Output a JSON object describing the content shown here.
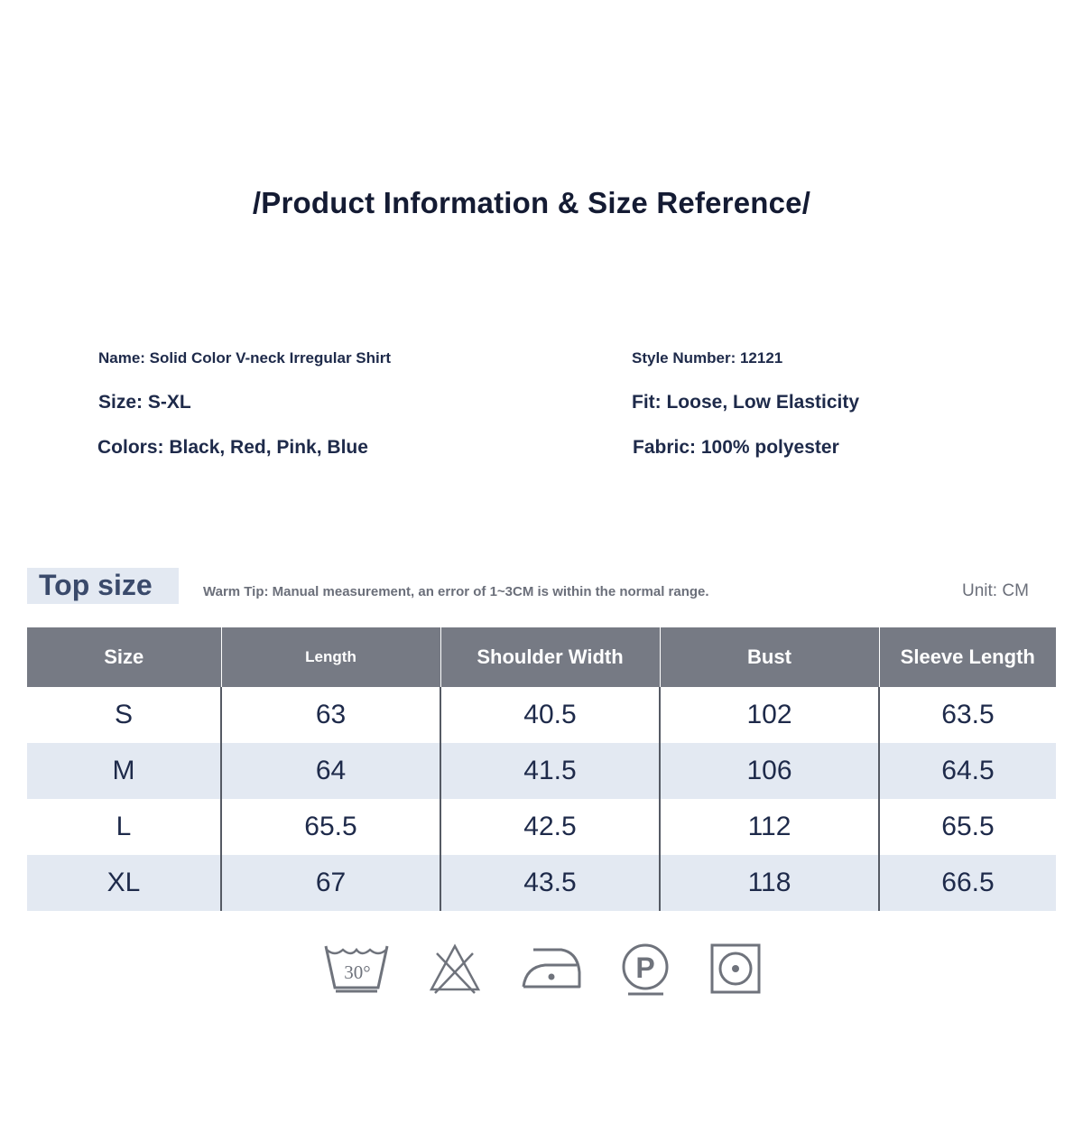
{
  "title": "/Product Information & Size Reference/",
  "info": {
    "name": "Name: Solid Color V-neck Irregular Shirt",
    "style_number": "Style Number: 12121",
    "size": "Size: S-XL",
    "fit": "Fit: Loose, Low Elasticity",
    "colors": "Colors: Black, Red, Pink, Blue",
    "fabric": "Fabric: 100% polyester"
  },
  "size_section": {
    "heading": "Top size",
    "tip": "Warm Tip: Manual measurement, an error of 1~3CM is within the normal range.",
    "unit": "Unit: CM"
  },
  "table": {
    "headers": [
      "Size",
      "Length",
      "Shoulder Width",
      "Bust",
      "Sleeve Length"
    ],
    "rows": [
      [
        "S",
        "63",
        "40.5",
        "102",
        "63.5"
      ],
      [
        "M",
        "64",
        "41.5",
        "106",
        "64.5"
      ],
      [
        "L",
        "65.5",
        "42.5",
        "112",
        "65.5"
      ],
      [
        "XL",
        "67",
        "43.5",
        "118",
        "66.5"
      ]
    ]
  },
  "care_icons": {
    "wash": {
      "icon": "wash-30-icon",
      "label": "30°"
    },
    "no_bleach": {
      "icon": "no-bleach-icon"
    },
    "iron": {
      "icon": "iron-low-icon"
    },
    "dry_clean": {
      "icon": "dry-clean-p-icon",
      "label": "P"
    },
    "tumble_dry": {
      "icon": "tumble-dry-icon"
    }
  },
  "colors": {
    "header_bg": "#767a84",
    "alt_row_bg": "#e3e9f2",
    "text": "#1e2a4a",
    "icon": "#6f737c"
  }
}
